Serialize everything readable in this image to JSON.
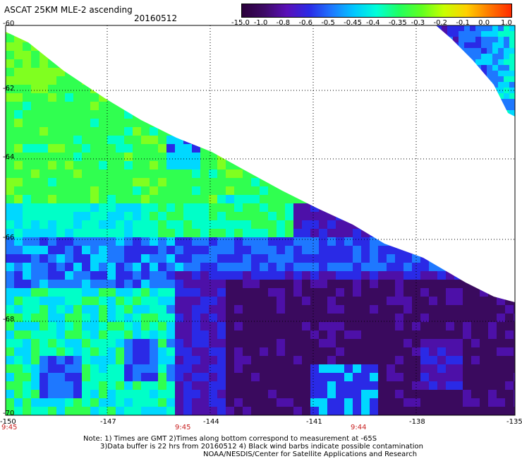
{
  "header": {
    "title": "ASCAT 25KM MLE-2 ascending",
    "date": "20160512"
  },
  "colorbar": {
    "labels": [
      "-15.0",
      "-1.0",
      "-0.8",
      "-0.6",
      "-0.5",
      "-0.45",
      "-0.4",
      "-0.35",
      "-0.3",
      "-0.2",
      "-0.1",
      "0.0",
      "1.0"
    ],
    "colors": [
      "#2a003a",
      "#3e0a66",
      "#5a10b8",
      "#2a2ae6",
      "#1e78ff",
      "#00c8ff",
      "#00ffd8",
      "#20ff60",
      "#60ff20",
      "#c8ff00",
      "#ffd000",
      "#ff7a00",
      "#ff2a00"
    ]
  },
  "axes": {
    "lat_labels": [
      "-60",
      "-62",
      "-64",
      "-66",
      "-68",
      "-70"
    ],
    "lon_labels": [
      "-150",
      "-147",
      "-144",
      "-141",
      "-138",
      "-135"
    ],
    "lat_range": [
      -70,
      -60
    ],
    "lon_range": [
      -150,
      -135
    ]
  },
  "time_labels": [
    "9:45",
    "9:45",
    "9:44"
  ],
  "notes": [
    "Note: 1) Times are GMT 2)Times along bottom correspond to measurement at -65S",
    "3)Data buffer is 22 hrs from 20160512 4) Black wind barbs indicate possible contamination",
    "NOAA/NESDIS/Center for Satellite Applications and Research"
  ]
}
